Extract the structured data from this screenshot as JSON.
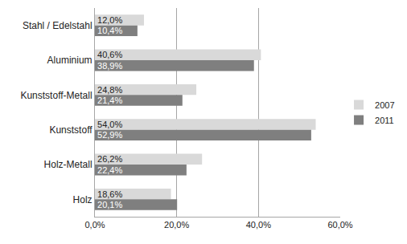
{
  "chart_data": {
    "type": "bar",
    "orientation": "horizontal",
    "categories": [
      "Stahl / Edelstahl",
      "Aluminium",
      "Kunststoff-Metall",
      "Kunststoff",
      "Holz-Metall",
      "Holz"
    ],
    "series": [
      {
        "name": "2007",
        "color": "#d9d9d9",
        "values": [
          12.0,
          40.6,
          24.8,
          54.0,
          26.2,
          18.6
        ],
        "value_labels": [
          "12,0%",
          "40,6%",
          "24,8%",
          "54,0%",
          "26,2%",
          "18,6%"
        ]
      },
      {
        "name": "2011",
        "color": "#7f7f7f",
        "values": [
          10.4,
          38.9,
          21.4,
          52.9,
          22.4,
          20.1
        ],
        "value_labels": [
          "10,4%",
          "38,9%",
          "21,4%",
          "52,9%",
          "22,4%",
          "20,1%"
        ]
      }
    ],
    "xlim": [
      0,
      60
    ],
    "xticks": [
      {
        "value": 0,
        "label": "0,0%"
      },
      {
        "value": 20,
        "label": "20,0%"
      },
      {
        "value": 40,
        "label": "40,0%"
      },
      {
        "value": 60,
        "label": "60,0%"
      }
    ],
    "grid": true,
    "legend": "right",
    "data_labels": true
  }
}
